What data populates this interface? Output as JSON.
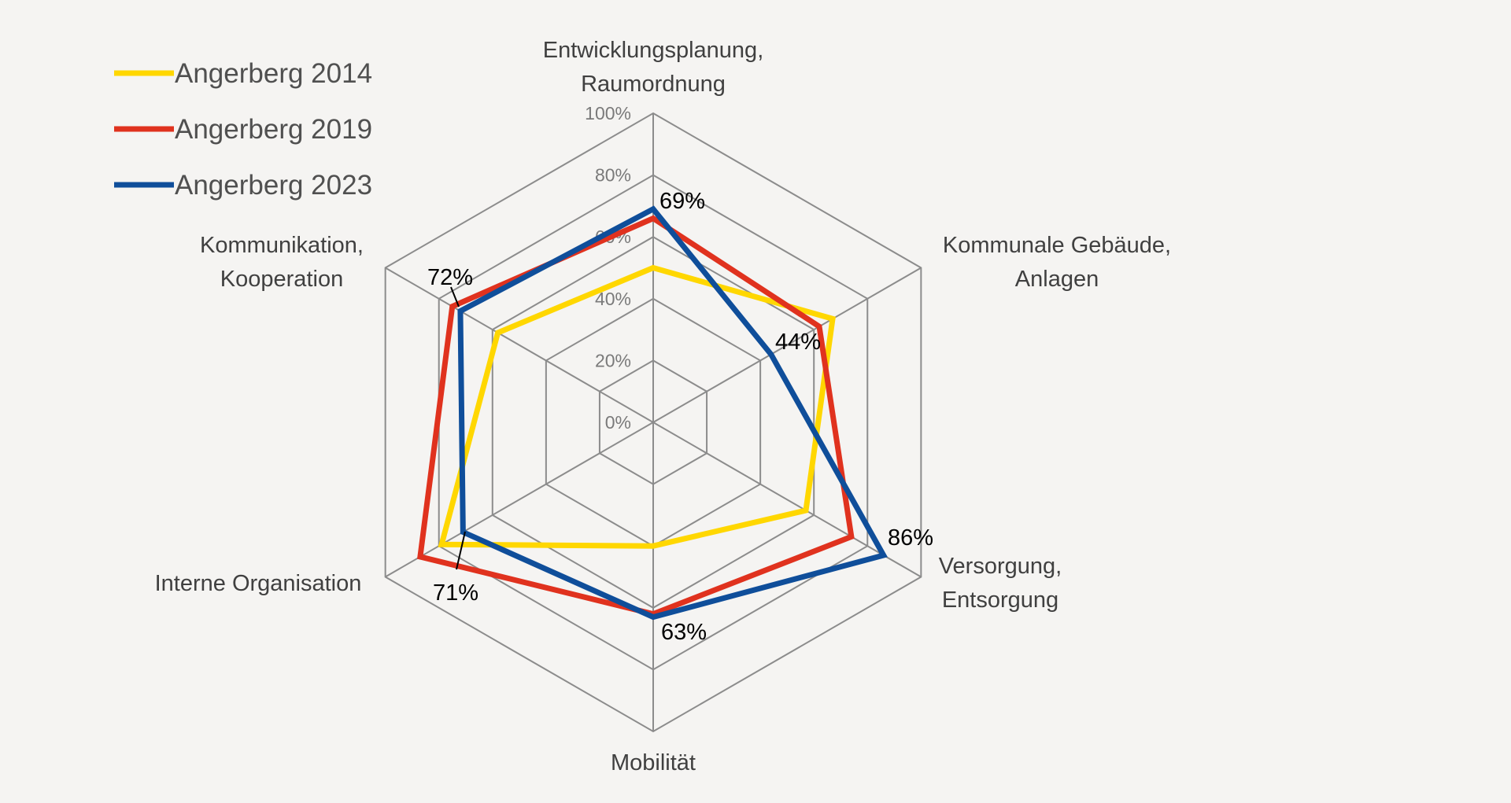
{
  "chart_data": {
    "type": "radar",
    "title": "",
    "categories": [
      [
        "Entwicklungsplanung,",
        "Raumordnung"
      ],
      [
        "Kommunale Gebäude,",
        "Anlagen"
      ],
      [
        "Versorgung,",
        "Entsorgung"
      ],
      [
        "Mobilität"
      ],
      [
        "Interne Organisation"
      ],
      [
        "Kommunikation,",
        "Kooperation"
      ]
    ],
    "rlim": [
      0,
      100
    ],
    "ticks": [
      "0%",
      "20%",
      "40%",
      "60%",
      "80%",
      "100%"
    ],
    "grid": true,
    "legend_position": "top-left",
    "series": [
      {
        "name": "Angerberg 2014",
        "color": "#ffd700",
        "values": [
          50,
          67,
          57,
          40,
          79,
          58
        ]
      },
      {
        "name": "Angerberg 2019",
        "color": "#e0321e",
        "values": [
          66,
          62,
          74,
          62,
          87,
          75
        ]
      },
      {
        "name": "Angerberg 2023",
        "color": "#0f4e9a",
        "values": [
          69,
          44,
          86,
          63,
          71,
          72
        ]
      }
    ],
    "data_labels": [
      "69%",
      "44%",
      "86%",
      "63%",
      "71%",
      "72%"
    ]
  }
}
